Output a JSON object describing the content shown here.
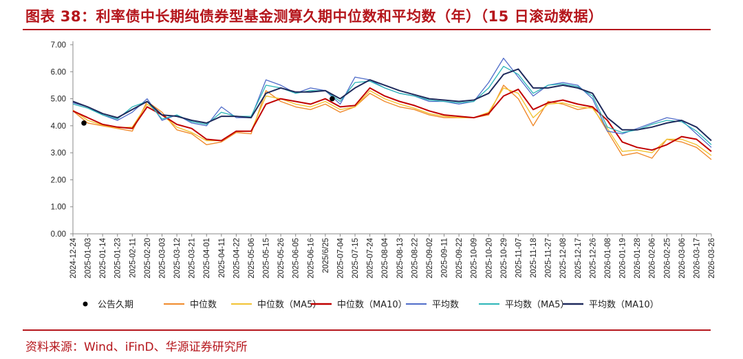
{
  "title": "图表 38：利率债中长期纯债券型基金测算久期中位数和平均数（年）（15 日滚动数据）",
  "source": "资料来源：Wind、iFinD、华源证券研究所",
  "chart_data": {
    "type": "line",
    "ylim": [
      0,
      7
    ],
    "yticks": [
      "0.00",
      "1.00",
      "2.00",
      "3.00",
      "4.00",
      "5.00",
      "6.00",
      "7.00"
    ],
    "xticks": [
      "2024-12-24",
      "2025-01-03",
      "2025-01-14",
      "2025-01-23",
      "2025-02-11",
      "2025-02-20",
      "2025-03-03",
      "2025-03-12",
      "2025-03-21",
      "2025-04-01",
      "2025-04-11",
      "2025-04-22",
      "2025-05-06",
      "2025-05-15",
      "2025-05-26",
      "2025-06-05",
      "2025-06-16",
      "2025/6/25",
      "2025-07-04",
      "2025-07-15",
      "2025-07-24",
      "2025-08-04",
      "2025-08-13",
      "2025-08-22",
      "2025-09-02",
      "2025-09-11",
      "2025-09-22",
      "2025-10-09",
      "2025-10-20",
      "2025-10-29",
      "2025-11-07",
      "2025-11-18",
      "2025-11-27",
      "2025-12-08",
      "2025-12-17",
      "2025-12-26",
      "2026-01-08",
      "2026-01-19",
      "2026-01-28",
      "2026-02-06",
      "2026-02-25",
      "2026-03-06",
      "2026-03-17",
      "2026-03-26"
    ],
    "markers": [
      {
        "x": "2024-12-24",
        "y": 4.1
      },
      {
        "x": "2025/6/25",
        "y": 5.0
      }
    ],
    "series": [
      {
        "name": "中位数",
        "color": "#f08a2b",
        "width": 1.4,
        "values": [
          4.55,
          4.1,
          4.0,
          3.9,
          3.8,
          4.9,
          4.5,
          3.85,
          3.7,
          3.3,
          3.4,
          3.75,
          3.7,
          5.3,
          4.9,
          4.7,
          4.6,
          4.8,
          4.5,
          4.7,
          5.2,
          4.9,
          4.7,
          4.6,
          4.4,
          4.3,
          4.3,
          4.3,
          4.4,
          5.5,
          5.0,
          4.0,
          4.9,
          4.8,
          4.6,
          4.7,
          3.8,
          2.9,
          3.0,
          2.8,
          3.5,
          3.4,
          3.2,
          2.75
        ]
      },
      {
        "name": "中位数（MA5）",
        "color": "#f2c232",
        "width": 1.4,
        "values": [
          4.58,
          4.2,
          4.02,
          3.92,
          3.95,
          4.8,
          4.4,
          3.95,
          3.75,
          3.45,
          3.45,
          3.78,
          3.8,
          5.1,
          5.0,
          4.8,
          4.7,
          4.9,
          4.6,
          4.7,
          5.3,
          5.0,
          4.8,
          4.65,
          4.45,
          4.35,
          4.3,
          4.3,
          4.5,
          5.4,
          5.2,
          4.3,
          4.8,
          4.85,
          4.7,
          4.65,
          3.9,
          3.05,
          3.1,
          3.0,
          3.5,
          3.5,
          3.3,
          2.9
        ]
      },
      {
        "name": "中位数（MA10）",
        "color": "#c00000",
        "width": 2.0,
        "values": [
          4.55,
          4.3,
          4.05,
          3.95,
          3.9,
          4.7,
          4.4,
          4.05,
          3.9,
          3.5,
          3.45,
          3.8,
          3.8,
          4.8,
          5.0,
          4.9,
          4.8,
          5.0,
          4.7,
          4.75,
          5.4,
          5.1,
          4.9,
          4.75,
          4.55,
          4.4,
          4.35,
          4.3,
          4.45,
          5.1,
          5.35,
          4.6,
          4.85,
          4.95,
          4.8,
          4.7,
          4.2,
          3.4,
          3.2,
          3.1,
          3.3,
          3.6,
          3.5,
          3.05
        ]
      },
      {
        "name": "平均数",
        "color": "#4f6cc9",
        "width": 1.3,
        "values": [
          4.85,
          4.7,
          4.4,
          4.2,
          4.5,
          5.0,
          4.2,
          4.4,
          4.1,
          4.0,
          4.7,
          4.3,
          4.3,
          5.7,
          5.5,
          5.2,
          5.4,
          5.3,
          4.8,
          5.8,
          5.7,
          5.4,
          5.2,
          5.1,
          4.9,
          4.9,
          4.8,
          4.9,
          5.6,
          6.5,
          5.8,
          5.1,
          5.5,
          5.6,
          5.5,
          5.0,
          3.8,
          3.7,
          3.9,
          4.1,
          4.3,
          4.2,
          3.7,
          3.2
        ]
      },
      {
        "name": "平均数（MA5）",
        "color": "#2bb5b8",
        "width": 1.3,
        "values": [
          4.8,
          4.65,
          4.4,
          4.25,
          4.7,
          4.9,
          4.25,
          4.4,
          4.15,
          4.05,
          4.5,
          4.35,
          4.35,
          5.5,
          5.4,
          5.2,
          5.3,
          5.3,
          4.9,
          5.6,
          5.65,
          5.4,
          5.2,
          5.1,
          4.95,
          4.9,
          4.85,
          4.9,
          5.4,
          6.2,
          5.9,
          5.2,
          5.5,
          5.55,
          5.45,
          5.1,
          3.95,
          3.75,
          3.85,
          4.05,
          4.2,
          4.15,
          3.8,
          3.3
        ]
      },
      {
        "name": "平均数（MA10）",
        "color": "#1f2a5c",
        "width": 2.0,
        "values": [
          4.9,
          4.7,
          4.45,
          4.3,
          4.6,
          4.9,
          4.4,
          4.35,
          4.2,
          4.1,
          4.35,
          4.35,
          4.3,
          5.2,
          5.4,
          5.25,
          5.25,
          5.3,
          5.0,
          5.4,
          5.7,
          5.5,
          5.3,
          5.15,
          5.0,
          4.95,
          4.9,
          4.95,
          5.2,
          5.9,
          6.1,
          5.4,
          5.4,
          5.5,
          5.4,
          5.2,
          4.3,
          3.85,
          3.85,
          3.95,
          4.1,
          4.2,
          3.95,
          3.45
        ]
      }
    ],
    "legend": {
      "placement": "bottom",
      "marker_label": "公告久期"
    }
  }
}
